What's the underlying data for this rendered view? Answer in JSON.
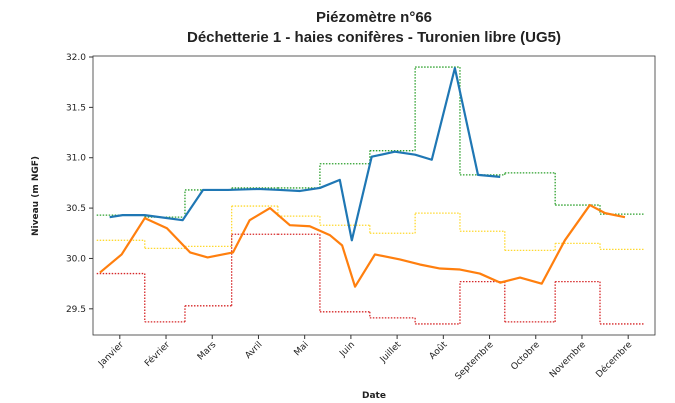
{
  "chart_data": {
    "type": "line",
    "title": "Piézomètre n°66",
    "subtitle": "Déchetterie 1 - haies conifères - Turonien libre (UG5)",
    "xlabel": "Date",
    "ylabel": "Niveau (m NGF)",
    "xlim": [
      0.42,
      12.58
    ],
    "xticks": [
      {
        "value": 1,
        "label": "Janvier"
      },
      {
        "value": 2,
        "label": "Février"
      },
      {
        "value": 3,
        "label": "Mars"
      },
      {
        "value": 4,
        "label": "Avril"
      },
      {
        "value": 5,
        "label": "Mai"
      },
      {
        "value": 6,
        "label": "Juin"
      },
      {
        "value": 7,
        "label": "Juillet"
      },
      {
        "value": 8,
        "label": "Août"
      },
      {
        "value": 9,
        "label": "Septembre"
      },
      {
        "value": 10,
        "label": "Octobre"
      },
      {
        "value": 11,
        "label": "Novembre"
      },
      {
        "value": 12,
        "label": "Décembre"
      }
    ],
    "ylim": [
      29.24,
      32.01
    ],
    "yticks": [
      29.5,
      {
        "value": 30,
        "label": "30.0"
      },
      30.5,
      {
        "value": 31,
        "label": "31.0"
      },
      31.5,
      {
        "value": 32,
        "label": "32.0"
      }
    ],
    "series": [
      {
        "color": "#1f77b4",
        "x": [
          0.78,
          1.06,
          1.54,
          2.36,
          2.8,
          3.34,
          3.99,
          4.46,
          4.9,
          5.33,
          5.76,
          6.02,
          6.45,
          6.95,
          7.39,
          7.75,
          8.25,
          8.75,
          9.23
        ],
        "values": [
          30.41,
          30.43,
          30.43,
          30.38,
          30.68,
          30.68,
          30.69,
          30.68,
          30.67,
          30.7,
          30.78,
          30.18,
          31.01,
          31.06,
          31.03,
          30.98,
          31.89,
          30.83,
          30.81
        ]
      },
      {
        "color": "#ff7f0e",
        "x": [
          0.57,
          1.04,
          1.54,
          2.02,
          2.52,
          2.9,
          3.45,
          3.81,
          4.25,
          4.68,
          5.11,
          5.55,
          5.81,
          6.09,
          6.52,
          7.06,
          7.49,
          7.93,
          8.36,
          8.79,
          9.23,
          9.66,
          10.13,
          10.63,
          11.17,
          11.5,
          11.93
        ],
        "values": [
          29.86,
          30.04,
          30.4,
          30.3,
          30.06,
          30.01,
          30.06,
          30.38,
          30.5,
          30.33,
          30.32,
          30.23,
          30.13,
          29.72,
          30.04,
          29.99,
          29.94,
          29.9,
          29.89,
          29.85,
          29.76,
          29.81,
          29.75,
          30.18,
          30.53,
          30.45,
          30.41
        ]
      }
    ],
    "steps": {
      "edges": [
        0.5,
        1.54,
        2.41,
        3.42,
        4.42,
        5.33,
        6.41,
        7.39,
        8.36,
        9.33,
        10.42,
        11.39,
        12.36
      ],
      "series": [
        {
          "color": "#2ca02c",
          "values": [
            30.43,
            30.41,
            30.68,
            30.7,
            30.7,
            30.94,
            31.07,
            31.9,
            30.83,
            30.85,
            30.53,
            30.44
          ]
        },
        {
          "color": "#ffd92f",
          "values": [
            30.18,
            30.1,
            30.12,
            30.52,
            30.42,
            30.33,
            30.25,
            30.45,
            30.27,
            30.08,
            30.15,
            30.09
          ]
        },
        {
          "color": "#d62728",
          "values": [
            29.85,
            29.37,
            29.53,
            30.24,
            30.24,
            29.47,
            29.41,
            29.35,
            29.77,
            29.37,
            29.77,
            29.35
          ]
        }
      ]
    }
  }
}
